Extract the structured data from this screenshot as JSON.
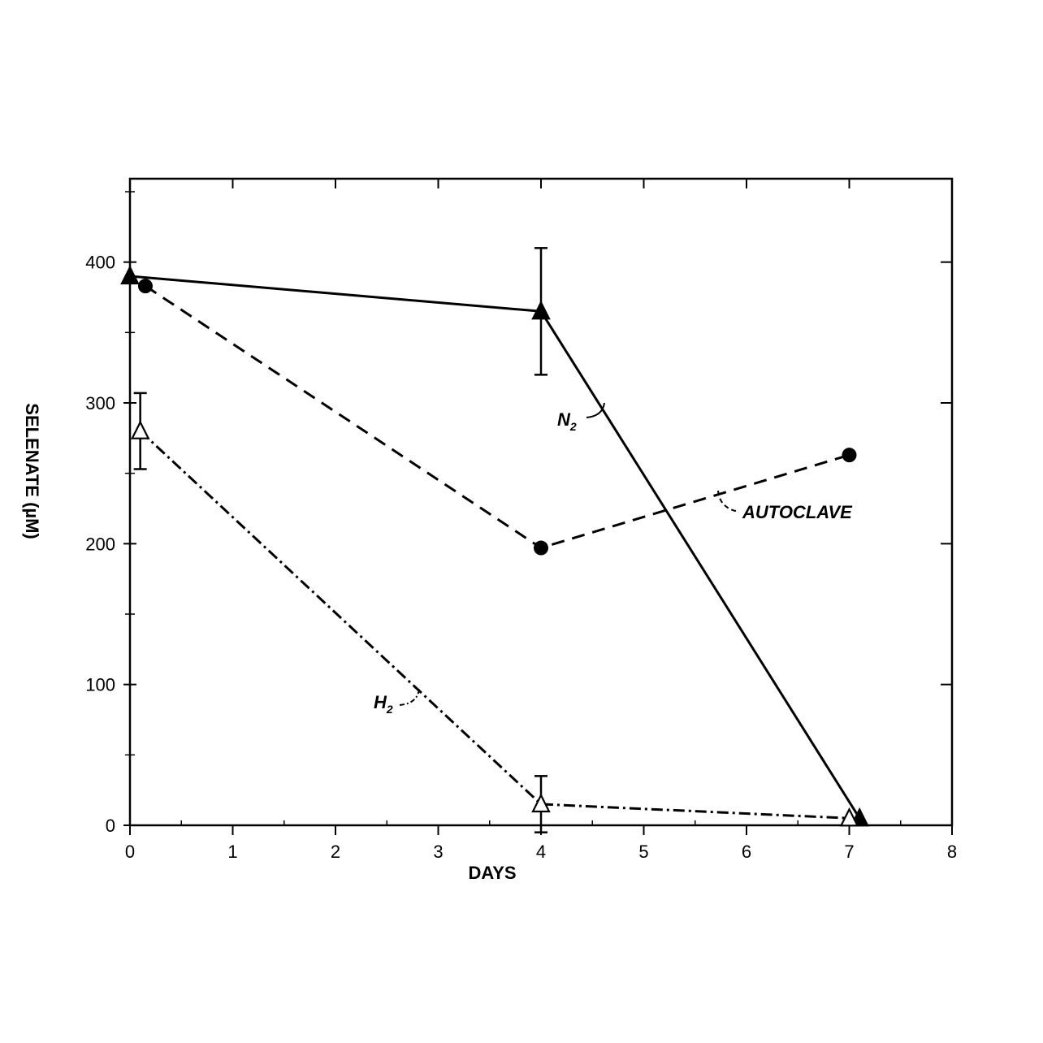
{
  "chart_data": {
    "type": "line",
    "title": "",
    "xlabel": "DAYS",
    "ylabel": "SELENATE (µM)",
    "xlim": [
      0,
      8
    ],
    "ylim": [
      0,
      450
    ],
    "xticks": [
      0,
      1,
      2,
      3,
      4,
      5,
      6,
      7,
      8
    ],
    "yticks": [
      0,
      100,
      200,
      300,
      400
    ],
    "xtick_labels": [
      "0",
      "1",
      "2",
      "3",
      "4",
      "5",
      "6",
      "7",
      "8"
    ],
    "ytick_labels": [
      "0",
      "100",
      "200",
      "300",
      "400"
    ],
    "grid": false,
    "legend": "none (series labeled by inline annotations)",
    "series": [
      {
        "name": "N2",
        "label_main": "N",
        "label_sub": "2",
        "line_style": "solid",
        "marker": "filled-triangle",
        "x": [
          0,
          4,
          7.1
        ],
        "y": [
          390,
          365,
          5
        ],
        "error": [
          null,
          45,
          null
        ]
      },
      {
        "name": "AUTOCLAVE",
        "label_main": "AUTOCLAVE",
        "label_sub": "",
        "line_style": "dashed",
        "marker": "filled-circle",
        "x": [
          0.15,
          4,
          7
        ],
        "y": [
          383,
          197,
          263
        ],
        "error": [
          null,
          null,
          null
        ]
      },
      {
        "name": "H2",
        "label_main": "H",
        "label_sub": "2",
        "line_style": "dash-dot",
        "marker": "open-triangle",
        "x": [
          0.1,
          4,
          7
        ],
        "y": [
          280,
          15,
          5
        ],
        "error": [
          27,
          20,
          null
        ]
      }
    ]
  }
}
